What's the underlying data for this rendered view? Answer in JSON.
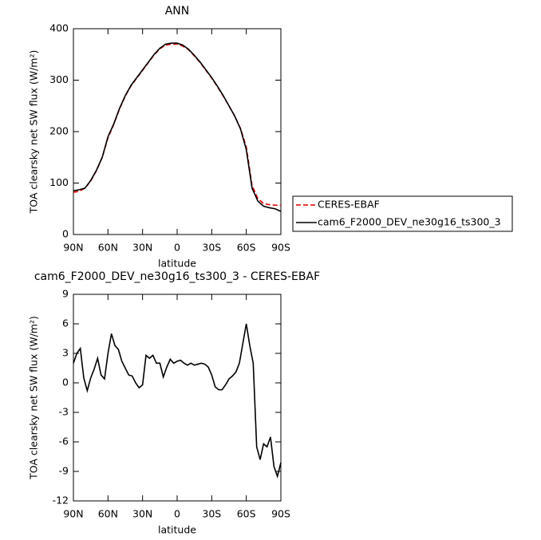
{
  "chart_data": [
    {
      "type": "line",
      "title": "ANN",
      "xlabel": "latitude",
      "ylabel": "TOA clearsky net SW flux (W/m²)",
      "x": [
        90,
        85,
        80,
        75,
        70,
        65,
        60,
        55,
        50,
        45,
        40,
        35,
        30,
        25,
        20,
        15,
        10,
        5,
        0,
        -5,
        -10,
        -15,
        -20,
        -25,
        -30,
        -35,
        -40,
        -45,
        -50,
        -55,
        -60,
        -65,
        -70,
        -75,
        -80,
        -85,
        -90
      ],
      "series": [
        {
          "name": "CERES-EBAF",
          "color": "#e00000",
          "linestyle": "dashed",
          "values": [
            82,
            84,
            90,
            104,
            124,
            150,
            188,
            214,
            244,
            269,
            289,
            304,
            319,
            334,
            349,
            361,
            368,
            370,
            370,
            366,
            359,
            347,
            334,
            319,
            304,
            287,
            269,
            250,
            230,
            206,
            170,
            95,
            70,
            60,
            58,
            57,
            57
          ]
        },
        {
          "name": "cam6_F2000_DEV_ne30g16_ts300_3",
          "color": "#000000",
          "linestyle": "solid",
          "values": [
            85,
            87,
            90,
            105,
            125,
            150,
            190,
            215,
            245,
            270,
            290,
            305,
            320,
            335,
            350,
            362,
            370,
            372,
            372,
            368,
            360,
            348,
            335,
            320,
            305,
            288,
            270,
            250,
            230,
            205,
            165,
            90,
            65,
            55,
            52,
            50,
            45
          ]
        }
      ],
      "xlim": [
        90,
        -90
      ],
      "xticks": [
        {
          "value": 90,
          "label": "90N"
        },
        {
          "value": 60,
          "label": "60N"
        },
        {
          "value": 30,
          "label": "30N"
        },
        0,
        {
          "value": -30,
          "label": "30S"
        },
        {
          "value": -60,
          "label": "60S"
        },
        {
          "value": -90,
          "label": "90S"
        }
      ],
      "ylim": [
        0,
        400
      ],
      "yticks": [
        0,
        100,
        200,
        300,
        400
      ],
      "legend": "outside-right"
    },
    {
      "type": "line",
      "title": "cam6_F2000_DEV_ne30g16_ts300_3 - CERES-EBAF",
      "xlabel": "latitude",
      "ylabel": "TOA clearsky net SW flux (W/m²)",
      "x": [
        90,
        87,
        84,
        81,
        78,
        75,
        72,
        69,
        66,
        63,
        60,
        57,
        54,
        51,
        48,
        45,
        42,
        39,
        36,
        33,
        30,
        27,
        24,
        21,
        18,
        15,
        12,
        9,
        6,
        3,
        0,
        -3,
        -6,
        -9,
        -12,
        -15,
        -18,
        -21,
        -24,
        -27,
        -30,
        -33,
        -36,
        -39,
        -42,
        -45,
        -48,
        -51,
        -54,
        -57,
        -60,
        -63,
        -66,
        -69,
        -72,
        -75,
        -78,
        -81,
        -84,
        -87,
        -90
      ],
      "series": [
        {
          "color": "#000000",
          "linestyle": "solid",
          "values": [
            2.0,
            3.0,
            3.5,
            0.5,
            -0.8,
            0.5,
            1.4,
            2.5,
            0.8,
            0.4,
            3.0,
            5.0,
            3.8,
            3.4,
            2.2,
            1.5,
            0.8,
            0.7,
            0,
            -0.5,
            -0.2,
            2.8,
            2.5,
            2.8,
            2.0,
            2.0,
            0.6,
            1.6,
            2.4,
            2.0,
            2.2,
            2.3,
            2.0,
            1.8,
            2.0,
            1.8,
            1.9,
            2.0,
            1.9,
            1.6,
            0.8,
            -0.4,
            -0.7,
            -0.7,
            -0.2,
            0.4,
            0.7,
            1.1,
            2.0,
            4.0,
            6.0,
            3.8,
            2.0,
            -6.5,
            -7.8,
            -6.2,
            -6.5,
            -5.5,
            -8.5,
            -9.5,
            -8.1
          ]
        }
      ],
      "xlim": [
        90,
        -90
      ],
      "xticks": [
        {
          "value": 90,
          "label": "90N"
        },
        {
          "value": 60,
          "label": "60N"
        },
        {
          "value": 30,
          "label": "30N"
        },
        0,
        {
          "value": -30,
          "label": "30S"
        },
        {
          "value": -60,
          "label": "60S"
        },
        {
          "value": -90,
          "label": "90S"
        }
      ],
      "ylim": [
        -12,
        9
      ],
      "yticks": [
        -12,
        -9,
        -6,
        -3,
        0,
        3,
        6,
        9
      ]
    }
  ]
}
